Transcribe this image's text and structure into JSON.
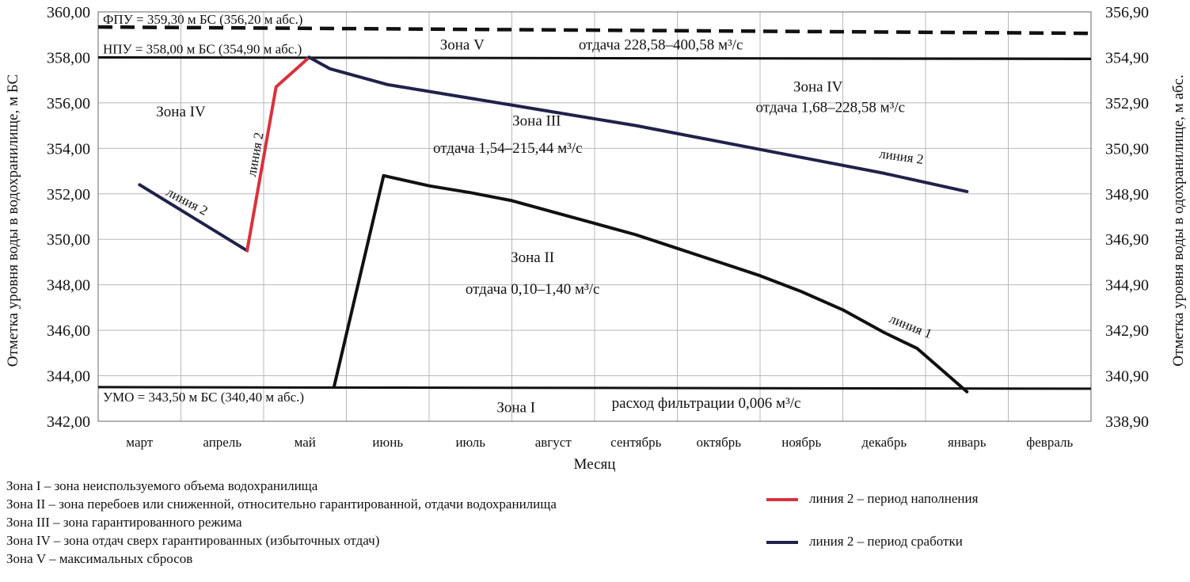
{
  "chart_data": {
    "type": "line",
    "xlabel": "Месяц",
    "ylabel_left": "Отметка уровня воды в водохранилище, м БС",
    "ylabel_right": "Отметка уровня воды в одохранилище, м абс.",
    "categories": [
      "март",
      "апрель",
      "май",
      "июнь",
      "июль",
      "август",
      "сентябрь",
      "октябрь",
      "ноябрь",
      "декабрь",
      "январь",
      "февраль"
    ],
    "y_left": {
      "range": [
        342,
        360
      ],
      "ticks": [
        "342,00",
        "344,00",
        "346,00",
        "348,00",
        "350,00",
        "352,00",
        "354,00",
        "356,00",
        "358,00",
        "360,00"
      ]
    },
    "y_right": {
      "ticks": [
        "338,90",
        "340,90",
        "342,90",
        "344,90",
        "346,90",
        "348,90",
        "350,90",
        "352,90",
        "354,90",
        "356,90"
      ]
    },
    "grid": true,
    "reference_lines": [
      {
        "name": "ФПУ",
        "label": "ФПУ = 359,30 м БС (356,20 м абс.)",
        "value": 359.3,
        "style": "dashed"
      },
      {
        "name": "НПУ",
        "label": "НПУ = 358,00 м БС (354,90 м абс.)",
        "value": 358.0,
        "style": "solid"
      },
      {
        "name": "УМО",
        "label": "УМО = 343,50 м БС (340,40 м абс.)",
        "value": 343.5,
        "style": "solid"
      }
    ],
    "series": [
      {
        "key": "line1",
        "color": "#111111",
        "points": [
          [
            2.35,
            343.5
          ],
          [
            2.95,
            352.8
          ],
          [
            3.5,
            352.35
          ],
          [
            4.0,
            352.05
          ],
          [
            4.5,
            351.7
          ],
          [
            5.0,
            351.2
          ],
          [
            5.5,
            350.7
          ],
          [
            6.0,
            350.2
          ],
          [
            6.5,
            349.6
          ],
          [
            7.0,
            349.0
          ],
          [
            7.5,
            348.4
          ],
          [
            8.0,
            347.7
          ],
          [
            8.5,
            346.9
          ],
          [
            9.0,
            345.9
          ],
          [
            9.4,
            345.2
          ],
          [
            10.0,
            343.3
          ]
        ]
      },
      {
        "key": "line2_drawdown_a",
        "color": "#20224a",
        "points": [
          [
            0.0,
            352.4
          ],
          [
            1.3,
            349.5
          ]
        ]
      },
      {
        "key": "line2_fill",
        "color": "#d8323c",
        "points": [
          [
            1.3,
            349.5
          ],
          [
            1.65,
            356.7
          ],
          [
            2.05,
            358.0
          ]
        ]
      },
      {
        "key": "line2_drawdown_b",
        "color": "#20224a",
        "points": [
          [
            2.05,
            358.0
          ],
          [
            2.3,
            357.5
          ],
          [
            3.0,
            356.8
          ],
          [
            4.0,
            356.2
          ],
          [
            5.0,
            355.6
          ],
          [
            6.0,
            355.0
          ],
          [
            7.0,
            354.3
          ],
          [
            8.0,
            353.6
          ],
          [
            9.0,
            352.9
          ],
          [
            10.0,
            352.1
          ]
        ]
      }
    ],
    "annotations": [
      {
        "key": "zone5",
        "text": "Зона V",
        "x": 3.9,
        "y": 358.35
      },
      {
        "key": "zone5_flow",
        "text": "отдача 228,58–400,58 м³/с",
        "x": 6.3,
        "y": 358.35
      },
      {
        "key": "zone4_left",
        "text": "Зона IV",
        "x": 0.5,
        "y": 355.4
      },
      {
        "key": "zone4_right",
        "text": "Зона IV",
        "x": 8.2,
        "y": 356.5
      },
      {
        "key": "zone4_flow",
        "text": "отдача 1,68–228,58 м³/с",
        "x": 8.35,
        "y": 355.6
      },
      {
        "key": "zone3",
        "text": "Зона III",
        "x": 4.8,
        "y": 355.0
      },
      {
        "key": "zone3_flow",
        "text": "отдача 1,54–215,44 м³/с",
        "x": 4.45,
        "y": 353.8
      },
      {
        "key": "zone2",
        "text": "Зона II",
        "x": 4.75,
        "y": 349.0
      },
      {
        "key": "zone2_flow",
        "text": "отдача 0,10–1,40  м³/с",
        "x": 4.75,
        "y": 347.6
      },
      {
        "key": "zone1",
        "text": "Зона I",
        "x": 4.55,
        "y": 342.4
      },
      {
        "key": "filtration",
        "text": "расход фильтрации  0,006 м³/с",
        "x": 6.85,
        "y": 342.6
      },
      {
        "key": "label_line2_left",
        "text": "линия 2",
        "x": 0.55,
        "y": 351.5,
        "rotate": 28
      },
      {
        "key": "label_line2_vertical",
        "text": "линия 2",
        "x": 1.45,
        "y": 353.7,
        "rotate": -80
      },
      {
        "key": "label_line2_right",
        "text": "линия 2",
        "x": 9.2,
        "y": 353.45,
        "rotate": 8
      },
      {
        "key": "label_line1",
        "text": "линия 1",
        "x": 9.3,
        "y": 346.0,
        "rotate": 22
      }
    ]
  },
  "zones_legend": [
    "Зона I  – зона неиспользуемого объема водохранилища",
    "Зона II – зона перебоев или сниженной, относительно гарантированной, отдачи водохранилища",
    "Зона III – зона гарантированного режима",
    "Зона IV – зона отдач сверх гарантированных (избыточных отдач)",
    "Зона V – максимальных сбросов"
  ],
  "lines_legend": [
    {
      "label": "линия 2 – период наполнения",
      "color": "#d8323c"
    },
    {
      "label": "линия 2 – период сработки",
      "color": "#20224a"
    }
  ]
}
